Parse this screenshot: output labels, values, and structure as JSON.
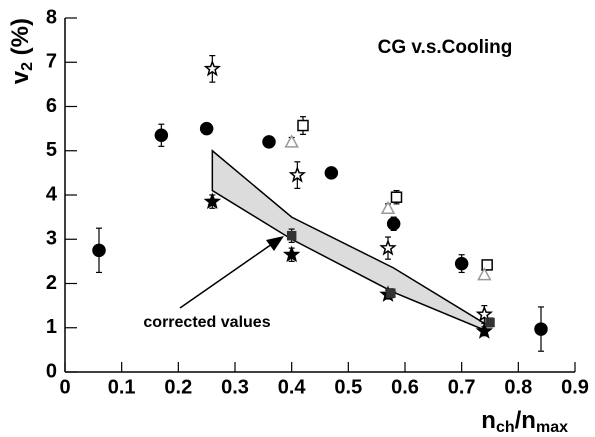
{
  "chart_data": {
    "type": "scatter",
    "title": "CG v.s.Cooling",
    "annotation": "corrected values",
    "x_label": {
      "main": "n",
      "sub": "ch",
      "sep": "/n",
      "sub2": "max"
    },
    "y_label": {
      "main": "v",
      "sub": "2",
      "suffix": " (%)"
    },
    "xlim": [
      0,
      0.9
    ],
    "ylim": [
      0,
      8
    ],
    "xticks": [
      0,
      0.1,
      0.2,
      0.3,
      0.4,
      0.5,
      0.6,
      0.7,
      0.8,
      0.9
    ],
    "yticks": [
      0,
      1,
      2,
      3,
      4,
      5,
      6,
      7,
      8
    ],
    "band": {
      "color": "#dcdcdc",
      "x": [
        0.26,
        0.4,
        0.58,
        0.74
      ],
      "upper": [
        5.0,
        3.5,
        2.35,
        1.1
      ],
      "lower": [
        4.1,
        3.0,
        1.8,
        0.95
      ]
    },
    "series": [
      {
        "marker": "circle",
        "filled": true,
        "color": "#000000",
        "x": [
          0.06,
          0.17,
          0.25,
          0.36,
          0.47,
          0.58,
          0.7,
          0.84
        ],
        "values": [
          2.75,
          5.35,
          5.5,
          5.2,
          4.5,
          3.35,
          2.45,
          0.97
        ],
        "errors": [
          0.5,
          0.25,
          0.12,
          0.1,
          0.1,
          0.15,
          0.2,
          0.5
        ]
      },
      {
        "marker": "star",
        "filled": false,
        "color": "#000000",
        "x": [
          0.26,
          0.41,
          0.57,
          0.74
        ],
        "values": [
          6.85,
          4.45,
          2.8,
          1.3
        ],
        "errors": [
          0.3,
          0.3,
          0.25,
          0.2
        ]
      },
      {
        "marker": "star",
        "filled": true,
        "color": "#000000",
        "x": [
          0.26,
          0.4,
          0.57,
          0.74
        ],
        "values": [
          3.85,
          2.65,
          1.75,
          0.92
        ],
        "errors": [
          0.15,
          0.15,
          0.1,
          0.1
        ]
      },
      {
        "marker": "square",
        "filled": false,
        "color": "#000000",
        "x": [
          0.42,
          0.585,
          0.745
        ],
        "values": [
          5.57,
          3.95,
          2.42
        ],
        "errors": [
          0.2,
          0.15,
          0.1
        ]
      },
      {
        "marker": "triangle",
        "filled": false,
        "color": "#999999",
        "x": [
          0.4,
          0.57,
          0.74
        ],
        "values": [
          5.2,
          3.7,
          2.2
        ],
        "errors": [
          0.1,
          0.1,
          0.1
        ]
      },
      {
        "marker": "square",
        "filled": true,
        "color": "#333333",
        "x": [
          0.4,
          0.575,
          0.75
        ],
        "values": [
          3.08,
          1.78,
          1.12
        ],
        "errors": [
          0.15,
          0.1,
          0.1
        ]
      }
    ]
  }
}
